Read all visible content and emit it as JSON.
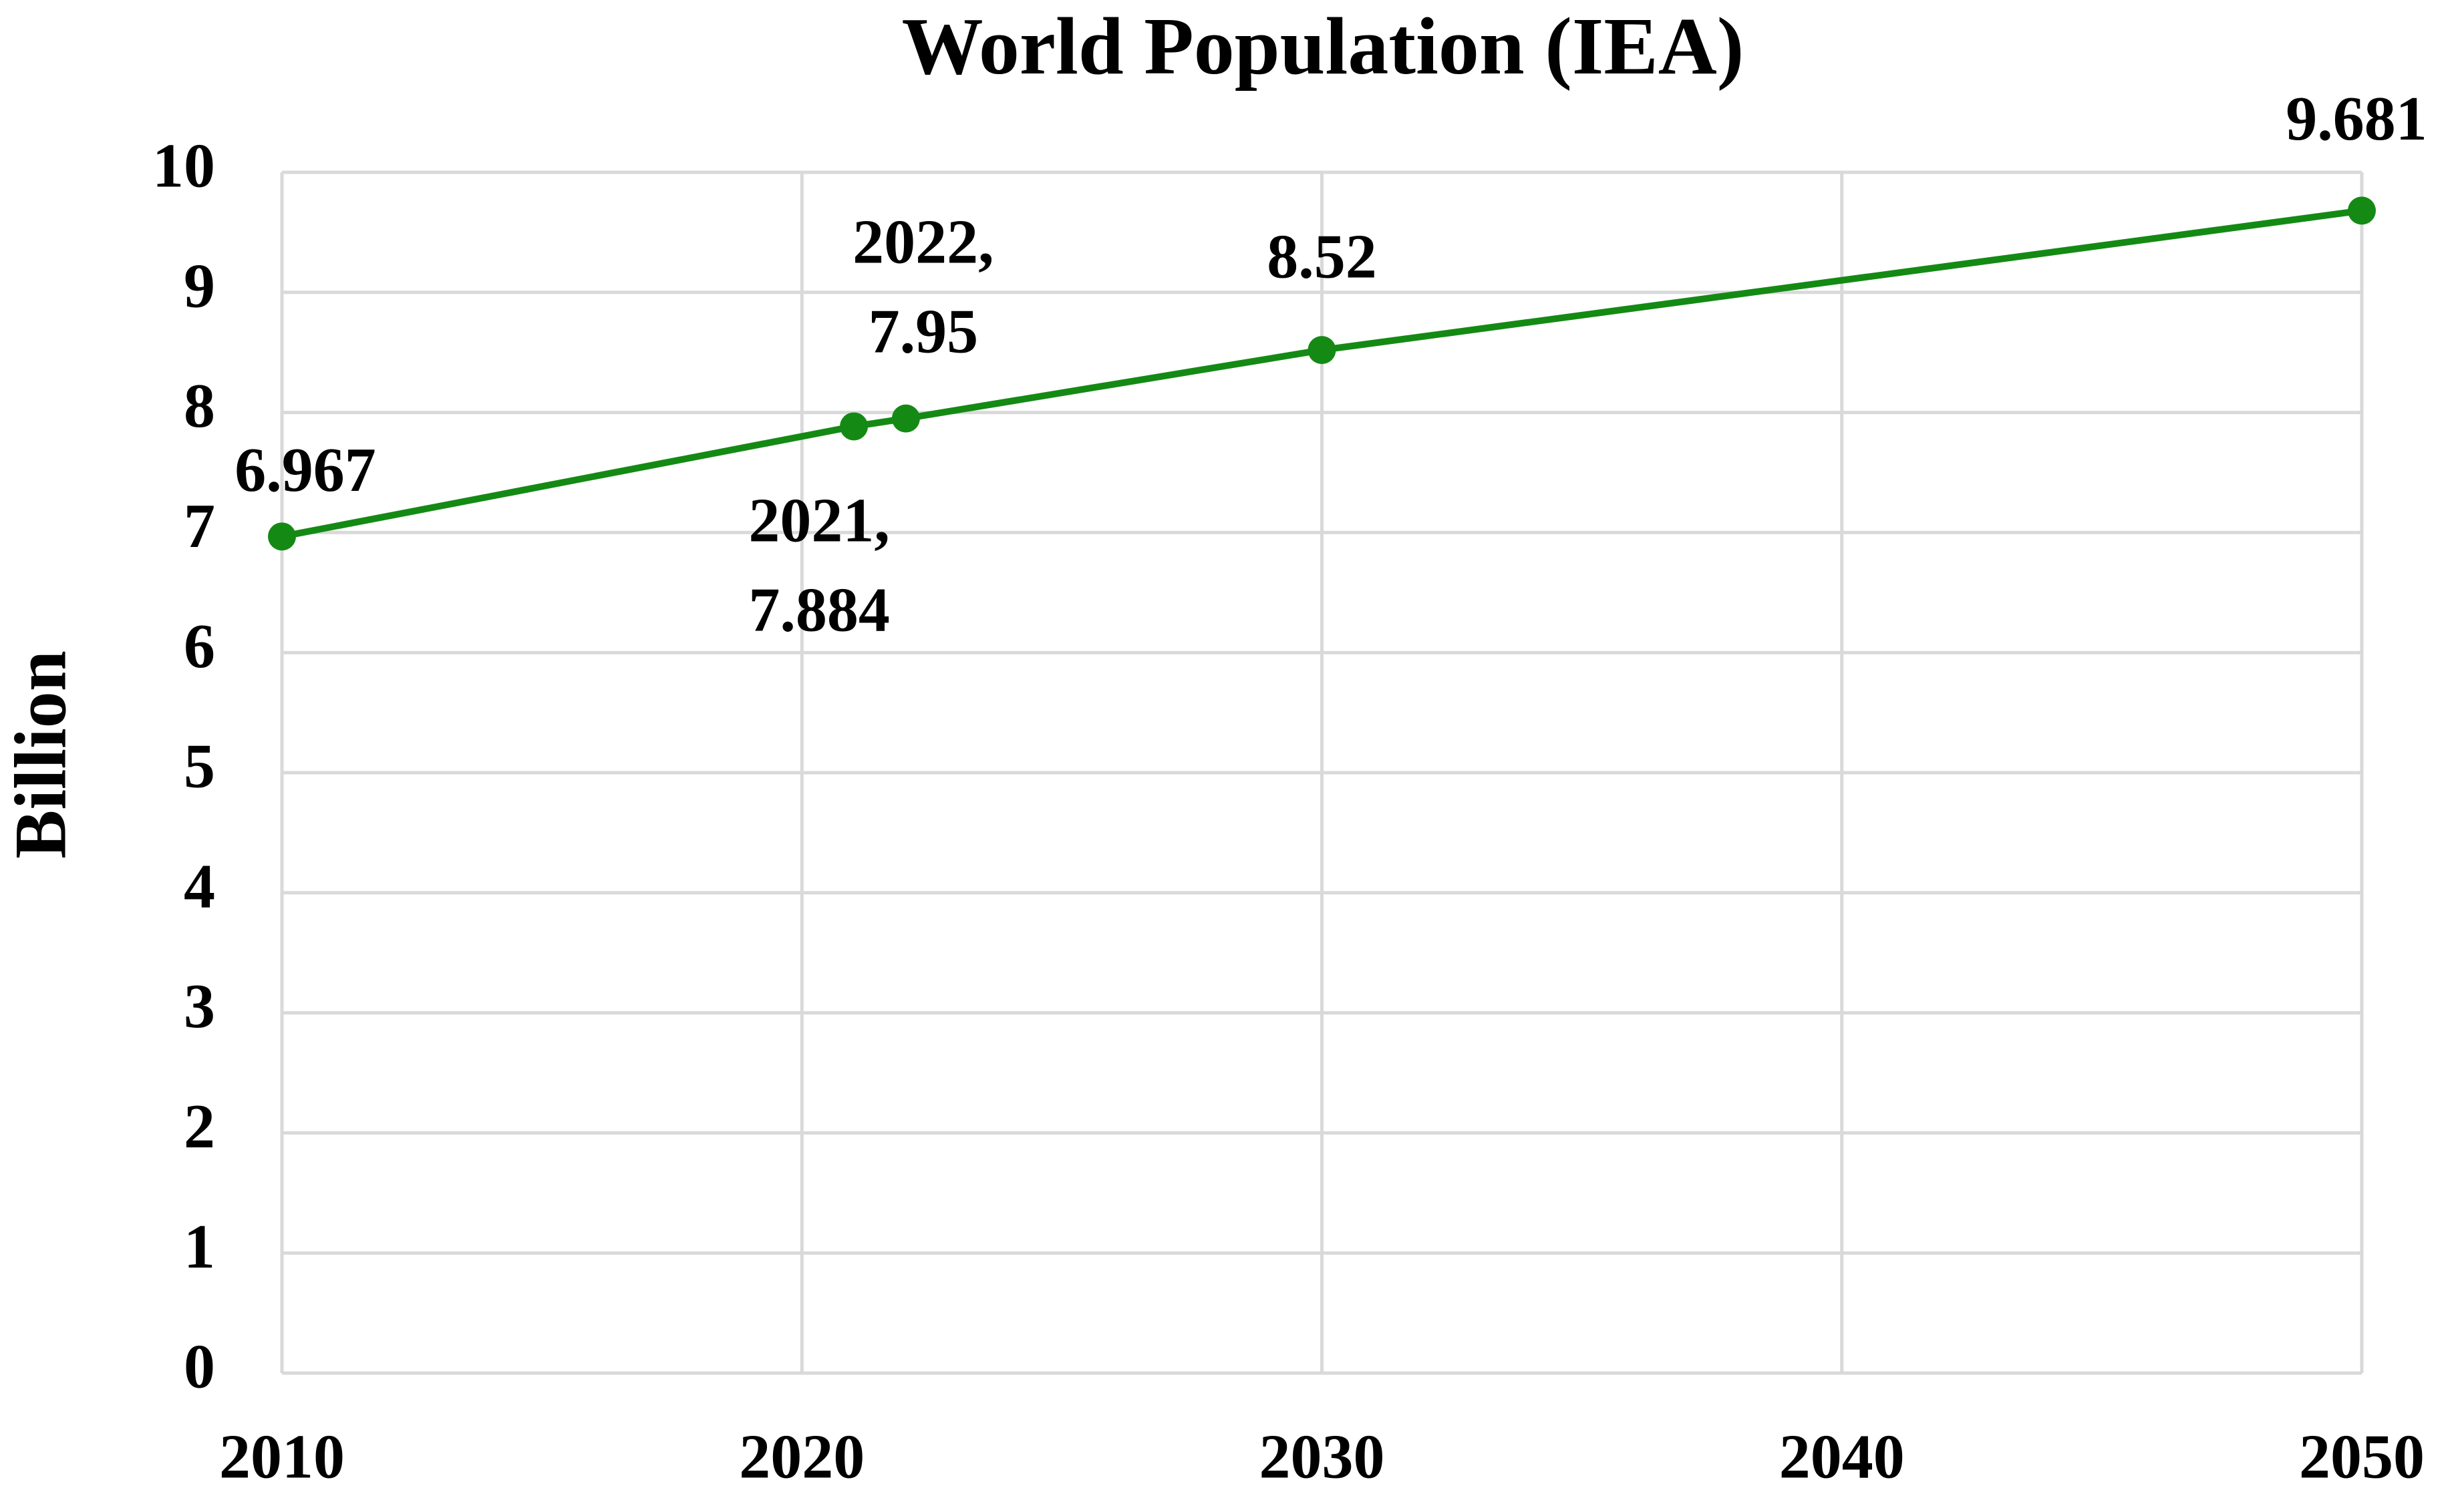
{
  "chart_data": {
    "type": "line",
    "title": "World Population (IEA)",
    "y_label": "Billion",
    "x": [
      2010,
      2021,
      2022,
      2030,
      2050
    ],
    "series": [
      {
        "name": "World Population",
        "color": "#148a14",
        "values": [
          6.967,
          7.884,
          7.95,
          8.52,
          9.681
        ],
        "value_labels": [
          "6.967",
          "2021,\n7.884",
          "2022,\n7.95",
          "8.52",
          "9.681"
        ]
      }
    ],
    "xlim": [
      2010,
      2050
    ],
    "xticks": [
      2010,
      2020,
      2030,
      2040,
      2050
    ],
    "ylim": [
      0,
      10
    ],
    "yticks": [
      0,
      1,
      2,
      3,
      4,
      5,
      6,
      7,
      8,
      9,
      10
    ],
    "grid": true
  }
}
